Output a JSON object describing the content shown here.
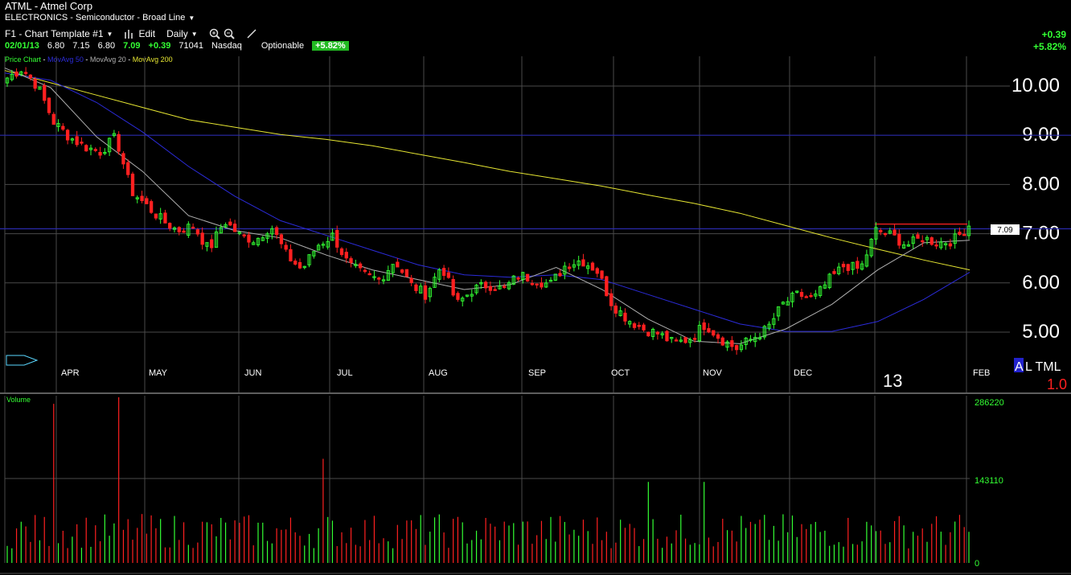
{
  "header": {
    "title": "ATML - Atmel Corp",
    "industry": "ELECTRONICS - Semiconductor - Broad Line"
  },
  "toolbar": {
    "template_label": "F1 - Chart Template #1",
    "edit_label": "Edit",
    "period_label": "Daily",
    "icons": [
      "bar-chart-icon",
      "zoom-in-icon",
      "zoom-out-icon",
      "draw-pen-icon"
    ]
  },
  "quote": {
    "date": "02/01/13",
    "open": "6.80",
    "high": "7.15",
    "low": "6.80",
    "close": "7.09",
    "change": "+0.39",
    "volume": "71041",
    "exchange": "Nasdaq",
    "optionable": "Optionable",
    "pct_change": "+5.82%"
  },
  "right_header": {
    "change": "+0.39",
    "pct_change": "+5.82%"
  },
  "legend": {
    "price": "Price Chart",
    "sep": " - ",
    "ma50": "MovAvg 50",
    "ma20": "MovAvg 20",
    "ma200": "MovAvg 200"
  },
  "colors": {
    "up": "#33ff33",
    "down": "#ff2020",
    "ma200": "#e6e632",
    "ma50": "#2b2bd9",
    "ma20": "#b0b0b0",
    "grid": "#4a4a4a",
    "hline": "#2a2aaa",
    "resistance": "#ff2020",
    "volume_axis": "#33ff33"
  },
  "right_panel": {
    "alt_a": "A",
    "alt_rest": "L TML",
    "alt_value": "1.0",
    "last_price_tag": "7.09"
  },
  "chart_data": {
    "type": "line",
    "title": "ATML - Atmel Corp",
    "price_ticks": [
      "10.00",
      "9.00",
      "8.00",
      "7.00",
      "6.00",
      "5.00"
    ],
    "price_tick_values": [
      10,
      9,
      8,
      7,
      6,
      5
    ],
    "month_labels": [
      "APR",
      "MAY",
      "JUN",
      "JUL",
      "AUG",
      "SEP",
      "OCT",
      "NOV",
      "DEC",
      "FEB"
    ],
    "year_label": "13",
    "horizontal_lines": [
      9.0,
      7.1
    ],
    "resistance_level": 7.13,
    "xlabel": "",
    "ylabel": "",
    "series": [
      {
        "name": "MovAvg 200",
        "values": [
          10.25,
          10.0,
          9.75,
          9.5,
          9.25,
          9.1,
          8.95,
          8.85,
          8.72,
          8.55,
          8.38,
          8.2,
          8.05,
          7.9,
          7.72,
          7.55,
          7.35,
          7.1,
          6.85,
          6.62,
          6.4,
          6.2
        ]
      },
      {
        "name": "MovAvg 50",
        "values": [
          10.2,
          10.05,
          9.6,
          9.0,
          8.3,
          7.7,
          7.2,
          6.9,
          6.6,
          6.3,
          6.1,
          6.05,
          6.1,
          6.0,
          5.7,
          5.4,
          5.1,
          4.95,
          4.95,
          5.15,
          5.6,
          6.15
        ]
      },
      {
        "name": "MovAvg 20",
        "values": [
          10.3,
          9.9,
          8.9,
          8.2,
          7.3,
          7.0,
          6.85,
          6.5,
          6.2,
          6.0,
          5.8,
          5.9,
          6.25,
          5.8,
          5.2,
          4.75,
          4.7,
          5.0,
          5.5,
          6.2,
          6.75,
          6.8
        ]
      }
    ],
    "ohlc_anchors": [
      10.1,
      10.3,
      9.9,
      9.2,
      8.9,
      8.7,
      8.6,
      8.9,
      7.8,
      7.5,
      7.2,
      7.0,
      7.1,
      6.6,
      7.2,
      6.9,
      6.8,
      7.1,
      6.5,
      6.2,
      6.7,
      6.9,
      6.3,
      6.1,
      6.0,
      6.4,
      5.9,
      5.7,
      6.3,
      5.5,
      5.8,
      5.9,
      5.8,
      6.1,
      6.0,
      5.9,
      6.3,
      6.4,
      6.2,
      5.5,
      5.2,
      5.0,
      4.9,
      4.7,
      4.8,
      5.1,
      4.8,
      4.6,
      4.8,
      5.0,
      5.5,
      5.7,
      5.6,
      6.0,
      6.3,
      6.2,
      7.0,
      6.9,
      6.7,
      6.85,
      6.75,
      6.8,
      7.09
    ],
    "volume": {
      "label": "Volume",
      "ticks": [
        "286220",
        "143110",
        "0"
      ],
      "tick_values": [
        286220,
        143110,
        0
      ],
      "spikes": [
        {
          "index": 10,
          "value": 275000,
          "color": "down"
        },
        {
          "index": 24,
          "value": 286220,
          "color": "down"
        },
        {
          "index": 68,
          "value": 180000,
          "color": "down"
        },
        {
          "index": 138,
          "value": 140000,
          "color": "up"
        },
        {
          "index": 150,
          "value": 140000,
          "color": "up"
        }
      ]
    }
  }
}
